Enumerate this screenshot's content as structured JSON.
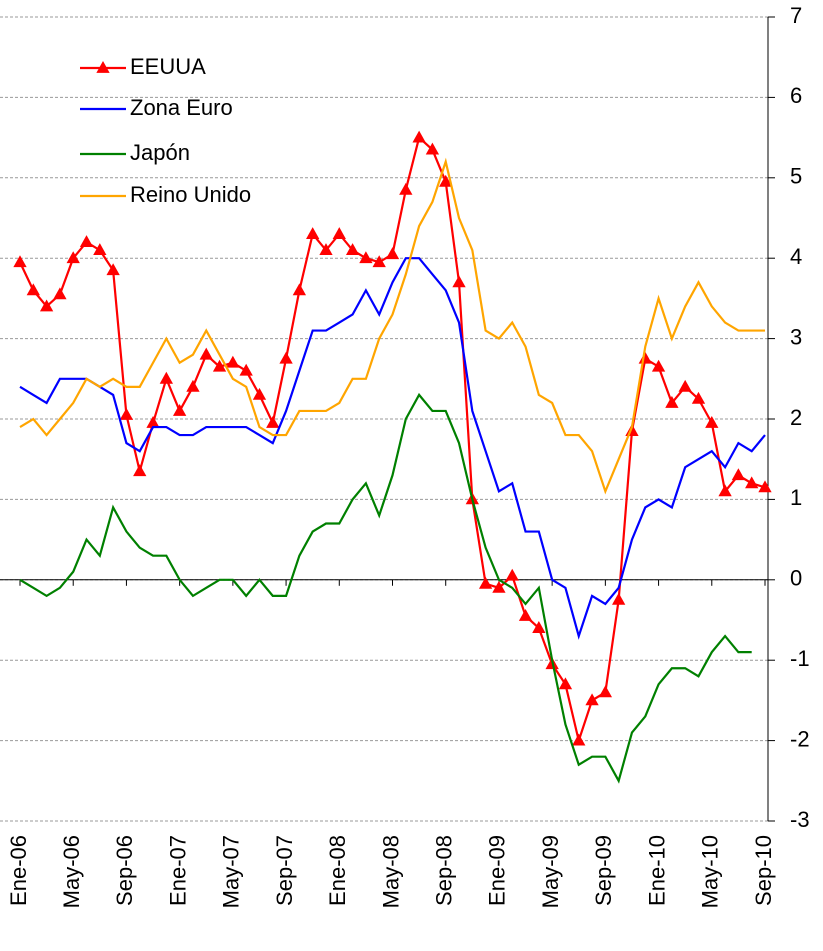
{
  "chart_data": {
    "type": "line",
    "categories": [
      "Ene-06",
      null,
      null,
      null,
      "May-06",
      null,
      null,
      null,
      "Sep-06",
      null,
      null,
      null,
      "Ene-07",
      null,
      null,
      null,
      "May-07",
      null,
      null,
      null,
      "Sep-07",
      null,
      null,
      null,
      "Ene-08",
      null,
      null,
      null,
      "May-08",
      null,
      null,
      null,
      "Sep-08",
      null,
      null,
      null,
      "Ene-09",
      null,
      null,
      null,
      "May-09",
      null,
      null,
      null,
      "Sep-09",
      null,
      null,
      null,
      "Ene-10",
      null,
      null,
      null,
      "May-10",
      null,
      null,
      null,
      "Sep-10"
    ],
    "series": [
      {
        "name": "EEUUA",
        "color": "#ff0000",
        "marker": "triangle",
        "values": [
          3.95,
          3.6,
          3.4,
          3.55,
          4.0,
          4.2,
          4.1,
          3.85,
          2.05,
          1.35,
          1.95,
          2.5,
          2.1,
          2.4,
          2.8,
          2.65,
          2.7,
          2.6,
          2.3,
          1.95,
          2.75,
          3.6,
          4.3,
          4.1,
          4.3,
          4.1,
          4.0,
          3.95,
          4.05,
          4.85,
          5.5,
          5.35,
          4.95,
          3.7,
          1.0,
          -0.05,
          -0.1,
          0.05,
          -0.45,
          -0.6,
          -1.05,
          -1.3,
          -2.0,
          -1.5,
          -1.4,
          -0.25,
          1.85,
          2.75,
          2.65,
          2.2,
          2.4,
          2.25,
          1.95,
          1.1,
          1.3,
          1.2,
          1.15
        ]
      },
      {
        "name": "Zona Euro",
        "color": "#0000ff",
        "values": [
          2.4,
          2.3,
          2.2,
          2.5,
          2.5,
          2.5,
          2.4,
          2.3,
          1.7,
          1.6,
          1.9,
          1.9,
          1.8,
          1.8,
          1.9,
          1.9,
          1.9,
          1.9,
          1.8,
          1.7,
          2.1,
          2.6,
          3.1,
          3.1,
          3.2,
          3.3,
          3.6,
          3.3,
          3.7,
          4.0,
          4.0,
          3.8,
          3.6,
          3.2,
          2.1,
          1.6,
          1.1,
          1.2,
          0.6,
          0.6,
          0.0,
          -0.1,
          -0.7,
          -0.2,
          -0.3,
          -0.1,
          0.5,
          0.9,
          1.0,
          0.9,
          1.4,
          1.5,
          1.6,
          1.4,
          1.7,
          1.6,
          1.8
        ]
      },
      {
        "name": "Japón",
        "color": "#008000",
        "values": [
          0,
          -0.1,
          -0.2,
          -0.1,
          0.1,
          0.5,
          0.3,
          0.9,
          0.6,
          0.4,
          0.3,
          0.3,
          0.0,
          -0.2,
          -0.1,
          0.0,
          0.0,
          -0.2,
          0.0,
          -0.2,
          -0.2,
          0.3,
          0.6,
          0.7,
          0.7,
          1.0,
          1.2,
          0.8,
          1.3,
          2.0,
          2.3,
          2.1,
          2.1,
          1.7,
          1.0,
          0.4,
          0.0,
          -0.1,
          -0.3,
          -0.1,
          -1.0,
          -1.8,
          -2.3,
          -2.2,
          -2.2,
          -2.5,
          -1.9,
          -1.7,
          -1.3,
          -1.1,
          -1.1,
          -1.2,
          -0.9,
          -0.7,
          -0.9,
          -0.9,
          null
        ]
      },
      {
        "name": "Reino Unido",
        "color": "#ffa500",
        "values": [
          1.9,
          2.0,
          1.8,
          2.0,
          2.2,
          2.5,
          2.4,
          2.5,
          2.4,
          2.4,
          2.7,
          3.0,
          2.7,
          2.8,
          3.1,
          2.8,
          2.5,
          2.4,
          1.9,
          1.8,
          1.8,
          2.1,
          2.1,
          2.1,
          2.2,
          2.5,
          2.5,
          3.0,
          3.3,
          3.8,
          4.4,
          4.7,
          5.2,
          4.5,
          4.1,
          3.1,
          3.0,
          3.2,
          2.9,
          2.3,
          2.2,
          1.8,
          1.8,
          1.6,
          1.1,
          1.5,
          1.9,
          2.9,
          3.5,
          3.0,
          3.4,
          3.7,
          3.4,
          3.2,
          3.1,
          3.1,
          3.1
        ]
      }
    ],
    "ylim": [
      -3,
      7
    ],
    "yticks": [
      -3,
      -2,
      -1,
      0,
      1,
      2,
      3,
      4,
      5,
      6,
      7
    ],
    "grid": true,
    "legend": "upper left",
    "y_axis_side": "right"
  }
}
